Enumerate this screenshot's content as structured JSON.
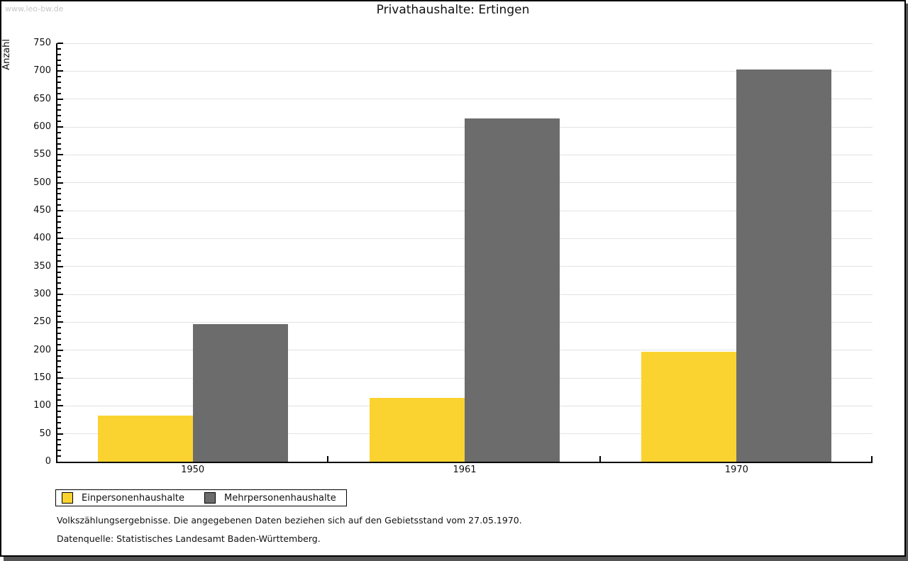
{
  "watermark": "www.leo-bw.de",
  "chart_data": {
    "type": "bar",
    "title": "Privathaushalte: Ertingen",
    "xlabel": "",
    "ylabel": "Anzahl",
    "categories": [
      "1950",
      "1961",
      "1970"
    ],
    "series": [
      {
        "name": "Einpersonenhaushalte",
        "color": "#fbd331",
        "values": [
          83,
          115,
          197
        ]
      },
      {
        "name": "Mehrpersonenhaushalte",
        "color": "#6c6c6c",
        "values": [
          247,
          615,
          703
        ]
      }
    ],
    "ylim": [
      0,
      750
    ],
    "ytick_step": 50,
    "minor_tick_step": 10,
    "grid": true,
    "legend_position": "bottom-left"
  },
  "footnotes": {
    "line1": "Volkszählungsergebnisse. Die angegebenen Daten beziehen sich auf den Gebietsstand vom 27.05.1970.",
    "line2": "Datenquelle: Statistisches Landesamt Baden-Württemberg."
  },
  "colors": {
    "grid": "#e2e2e2",
    "axis": "#000000",
    "shadow": "#545454",
    "watermark_text": "#c6c6c6"
  }
}
